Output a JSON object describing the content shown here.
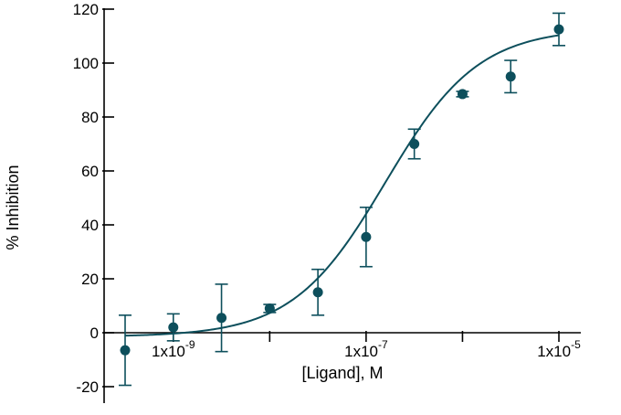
{
  "chart_data": {
    "type": "scatter",
    "title": "",
    "xlabel": "[Ligand], M",
    "ylabel": "% Inhibition",
    "xscale": "log10",
    "xlim_log10": [
      -9.5,
      -5
    ],
    "ylim": [
      -25,
      120
    ],
    "y_ticks": [
      -20,
      0,
      20,
      40,
      60,
      80,
      100,
      120
    ],
    "x_tick_labels": [
      {
        "log10": -9,
        "base": "1x10",
        "exp": "-9"
      },
      {
        "log10": -7,
        "base": "1x10",
        "exp": "-7"
      },
      {
        "log10": -5,
        "base": "1x10",
        "exp": "-5"
      }
    ],
    "x_minor_ticks_log10": [
      -9,
      -8,
      -7,
      -6,
      -5
    ],
    "color": "#0d4f5c",
    "series": [
      {
        "name": "% Inhibition",
        "points": [
          {
            "x_log10": -9.5,
            "y": -6.5,
            "err": 13
          },
          {
            "x_log10": -9.0,
            "y": 2,
            "err": 5
          },
          {
            "x_log10": -8.5,
            "y": 5.5,
            "err": 12.5
          },
          {
            "x_log10": -8.0,
            "y": 9,
            "err": 1.5
          },
          {
            "x_log10": -7.5,
            "y": 15,
            "err": 8.5
          },
          {
            "x_log10": -7.0,
            "y": 35.5,
            "err": 11
          },
          {
            "x_log10": -6.5,
            "y": 70,
            "err": 5.5
          },
          {
            "x_log10": -6.0,
            "y": 88.5,
            "err": 1
          },
          {
            "x_log10": -5.5,
            "y": 95,
            "err": 6
          },
          {
            "x_log10": -5.0,
            "y": 112.5,
            "err": 6
          }
        ]
      }
    ],
    "fit": {
      "model": "four-parameter logistic",
      "bottom": -1.5,
      "top": 113,
      "log_ec50": -6.8,
      "hill": 0.9
    }
  }
}
